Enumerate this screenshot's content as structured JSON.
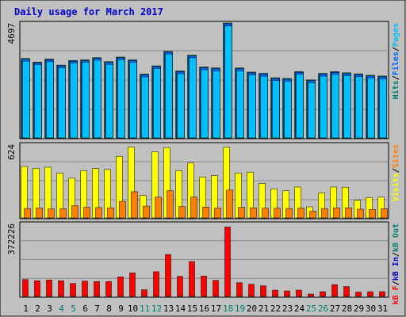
{
  "title": "Daily usage for March 2017",
  "colors": {
    "frame_bg": "#c0c0c0",
    "plot_bg": "#c0c0c0",
    "title": "#0000cc",
    "hits": "#00806e",
    "files": "#0066ff",
    "pages": "#00c0ff",
    "visits": "#ffff00",
    "sites": "#ff8000",
    "kbf": "#ff0000",
    "kbin": "#0000cc",
    "kbout": "#00806e",
    "weekend_day": "#00806e",
    "weekday": "#000000"
  },
  "chart_data": {
    "type": "bar",
    "title": "Daily usage for March 2017",
    "categories": [
      "1",
      "2",
      "3",
      "4",
      "5",
      "6",
      "7",
      "8",
      "9",
      "10",
      "11",
      "12",
      "13",
      "14",
      "15",
      "16",
      "17",
      "18",
      "19",
      "20",
      "21",
      "22",
      "23",
      "24",
      "25",
      "26",
      "27",
      "28",
      "29",
      "30",
      "31"
    ],
    "weekend_days": [
      "4",
      "5",
      "11",
      "12",
      "18",
      "19",
      "25",
      "26"
    ],
    "panels": [
      {
        "id": "top",
        "max_label": "4697",
        "ymax": 4697,
        "right_labels": [
          {
            "text": "Hits",
            "color": "hits"
          },
          {
            "text": "/",
            "color": "weekday"
          },
          {
            "text": "Files",
            "color": "files"
          },
          {
            "text": "/",
            "color": "weekday"
          },
          {
            "text": "Pages",
            "color": "pages"
          }
        ],
        "series": [
          {
            "name": "Hits",
            "color": "hits",
            "values": [
              3246,
              3100,
              3223,
              2976,
              3168,
              3190,
              3281,
              3116,
              3304,
              3190,
              2610,
              2945,
              3534,
              2738,
              3383,
              2900,
              2860,
              4697,
              2860,
              2690,
              2640,
              2460,
              2430,
              2710,
              2370,
              2640,
              2710,
              2660,
              2620,
              2560,
              2530
            ]
          },
          {
            "name": "Files",
            "color": "files",
            "values": [
              3246,
              3100,
              3223,
              2976,
              3168,
              3190,
              3281,
              3116,
              3304,
              3190,
              2610,
              2945,
              3534,
              2738,
              3383,
              2900,
              2860,
              4697,
              2860,
              2690,
              2640,
              2460,
              2430,
              2710,
              2370,
              2640,
              2710,
              2660,
              2620,
              2560,
              2530
            ]
          },
          {
            "name": "Pages",
            "color": "pages",
            "values": [
              3200,
              3060,
              3180,
              2930,
              3130,
              3150,
              3240,
              3070,
              3260,
              3150,
              2560,
              2900,
              3490,
              2690,
              3340,
              2850,
              2810,
              4640,
              2810,
              2640,
              2590,
              2410,
              2380,
              2660,
              2320,
              2590,
              2660,
              2610,
              2570,
              2510,
              2480
            ]
          }
        ]
      },
      {
        "id": "middle",
        "max_label": "624",
        "ymax": 624,
        "right_labels": [
          {
            "text": "Visits",
            "color": "visits"
          },
          {
            "text": "/",
            "color": "weekday"
          },
          {
            "text": "Sites",
            "color": "sites"
          }
        ],
        "series": [
          {
            "name": "Visits",
            "color": "visits",
            "values": [
              436,
              420,
              430,
              380,
              336,
              400,
              418,
              410,
              522,
              600,
              190,
              560,
              596,
              400,
              466,
              346,
              358,
              598,
              380,
              388,
              292,
              246,
              230,
              262,
              94,
              212,
              262,
              260,
              150,
              172,
              176
            ]
          },
          {
            "name": "Sites",
            "color": "sites",
            "values": [
              80,
              84,
              76,
              78,
              104,
              90,
              88,
              86,
              140,
              222,
              100,
              176,
              230,
              96,
              176,
              92,
              84,
              236,
              90,
              86,
              82,
              82,
              80,
              84,
              56,
              80,
              86,
              86,
              74,
              72,
              78
            ]
          }
        ]
      },
      {
        "id": "bottom",
        "max_label": "372226",
        "ymax": 372226,
        "right_labels": [
          {
            "text": "kB F",
            "color": "kbf"
          },
          {
            "text": "/",
            "color": "weekday"
          },
          {
            "text": "kB In",
            "color": "kbin"
          },
          {
            "text": "/",
            "color": "weekday"
          },
          {
            "text": "kB Out",
            "color": "kbout"
          }
        ],
        "series": [
          {
            "name": "kB F",
            "color": "kbf",
            "values": [
              86000,
              80000,
              84000,
              80000,
              66000,
              78000,
              76000,
              76000,
              100000,
              120000,
              34000,
              126000,
              214000,
              102000,
              178000,
              104000,
              82000,
              354000,
              70000,
              62000,
              54000,
              32000,
              28000,
              32000,
              12000,
              24000,
              60000,
              50000,
              22000,
              24000,
              24000
            ]
          }
        ]
      }
    ]
  }
}
